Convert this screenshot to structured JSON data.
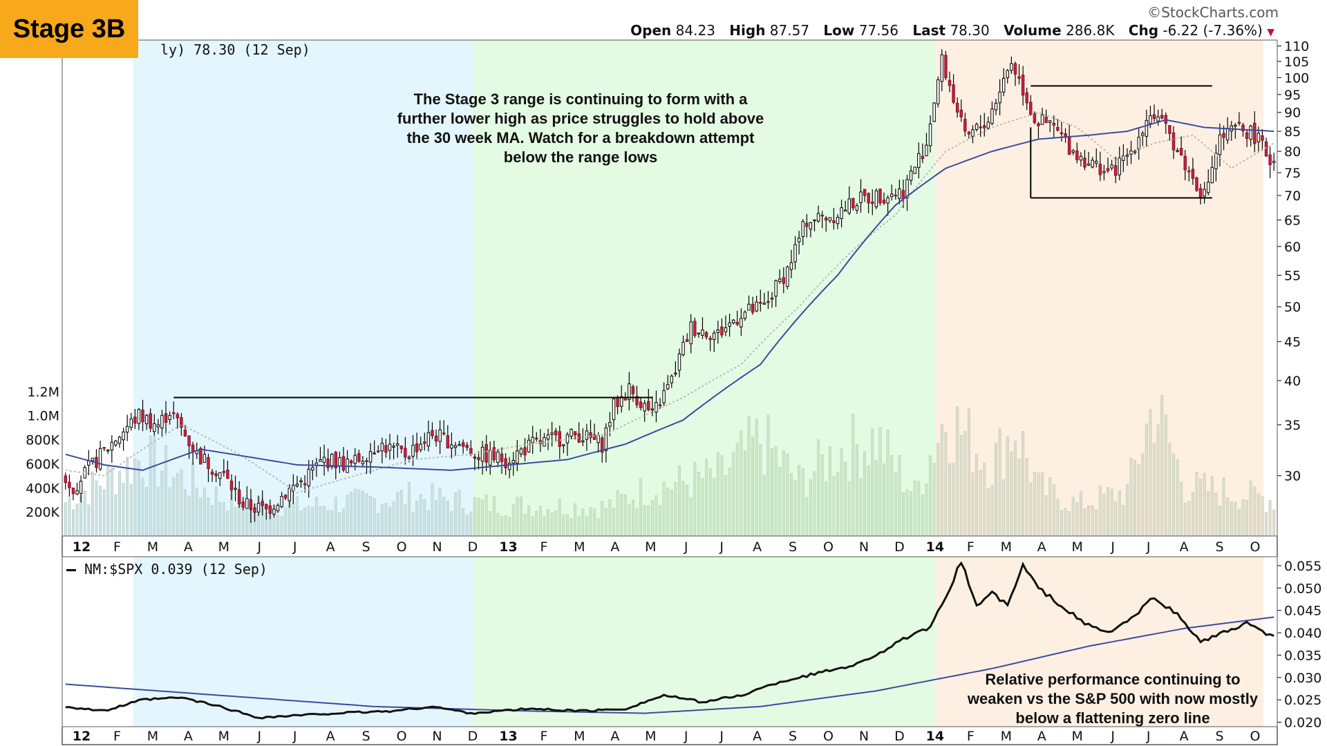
{
  "badge": "Stage 3B",
  "watermark": "©StockCharts.com",
  "quote": {
    "open_label": "Open",
    "open": "84.23",
    "high_label": "High",
    "high": "87.57",
    "low_label": "Low",
    "low": "77.56",
    "last_label": "Last",
    "last": "78.30",
    "volume_label": "Volume",
    "volume": "286.8K",
    "chg_label": "Chg",
    "chg": "-6.22 (-7.36%)"
  },
  "price_label": "ly) 78.30 (12 Sep)",
  "rs_label": "NM:$SPX 0.039 (12 Sep)",
  "annotations": {
    "stage3_lines": [
      "The Stage 3 range is continuing to form with a",
      "further lower high as price struggles to hold above",
      "the 30 week MA. Watch for a breakdown attempt",
      "below the range lows"
    ],
    "rs_lines": [
      "Relative performance continuing to",
      "weaken vs the S&P 500 with now mostly",
      "below a flattening zero line"
    ]
  },
  "colors": {
    "up": "#000000",
    "down": "#c8223f",
    "ma": "#3b4aa0",
    "ma_short": "#bbbbbb",
    "stage1_bg": "#e4f6fd",
    "stage2_bg": "#e4fbe3",
    "stage3_bg": "#fdf0e3",
    "vol_stage1": "#c6e2e6",
    "vol_stage2": "#c9e9c3",
    "vol_stage3": "#e0dcc9"
  },
  "chart_data": [
    {
      "type": "candlestick",
      "scale": "log",
      "ylim": [
        25,
        112
      ],
      "y_ticks": [
        110,
        105,
        100,
        95,
        90,
        85,
        80,
        75,
        70,
        65,
        60,
        55,
        50,
        45,
        40,
        35,
        30
      ],
      "volume_ticks": [
        "1.2M",
        "1.0M",
        "800K",
        "600K",
        "400K",
        "200K"
      ],
      "volume_tick_values": [
        1200000,
        1000000,
        800000,
        600000,
        400000,
        200000
      ],
      "volume_max": 1400000,
      "x_labels": [
        "12",
        "F",
        "M",
        "A",
        "M",
        "J",
        "J",
        "A",
        "S",
        "O",
        "N",
        "D",
        "13",
        "F",
        "M",
        "A",
        "M",
        "J",
        "J",
        "A",
        "S",
        "O",
        "N",
        "D",
        "14",
        "F",
        "M",
        "A",
        "M",
        "J",
        "J",
        "A",
        "S",
        "O"
      ],
      "week_end_label": "12 Sep",
      "stage_boundaries_week": [
        0,
        106,
        226,
        297
      ],
      "breakout_line": {
        "price": 38.0,
        "from_week": 28,
        "to_week": 152
      },
      "range_lines": {
        "top": 97.5,
        "bottom": 69.5,
        "from_week": 250,
        "to_week": 297
      },
      "anchors": [
        [
          0,
          30
        ],
        [
          3,
          29
        ],
        [
          8,
          31
        ],
        [
          15,
          34
        ],
        [
          20,
          36
        ],
        [
          25,
          35
        ],
        [
          28,
          36.5
        ],
        [
          35,
          32
        ],
        [
          42,
          30
        ],
        [
          47,
          27.5
        ],
        [
          53,
          27
        ],
        [
          58,
          28.5
        ],
        [
          62,
          29.5
        ],
        [
          68,
          31.5
        ],
        [
          75,
          31
        ],
        [
          82,
          33
        ],
        [
          89,
          32
        ],
        [
          96,
          34
        ],
        [
          103,
          33
        ],
        [
          108,
          32
        ],
        [
          115,
          31.5
        ],
        [
          122,
          33
        ],
        [
          128,
          33.5
        ],
        [
          134,
          34
        ],
        [
          140,
          33
        ],
        [
          143,
          37
        ],
        [
          147,
          39
        ],
        [
          153,
          36
        ],
        [
          158,
          40
        ],
        [
          163,
          47
        ],
        [
          170,
          46
        ],
        [
          176,
          49
        ],
        [
          182,
          50
        ],
        [
          188,
          56
        ],
        [
          193,
          65
        ],
        [
          200,
          66
        ],
        [
          206,
          69
        ],
        [
          212,
          70
        ],
        [
          218,
          71
        ],
        [
          224,
          82
        ],
        [
          228,
          105
        ],
        [
          234,
          83
        ],
        [
          240,
          88
        ],
        [
          246,
          105
        ],
        [
          252,
          88
        ],
        [
          257,
          86
        ],
        [
          262,
          80
        ],
        [
          267,
          77
        ],
        [
          272,
          75
        ],
        [
          277,
          80
        ],
        [
          282,
          90
        ],
        [
          287,
          84
        ],
        [
          292,
          75
        ],
        [
          296,
          70
        ],
        [
          300,
          83
        ],
        [
          305,
          86
        ],
        [
          309,
          84
        ],
        [
          313,
          78
        ]
      ],
      "ma30_anchors": [
        [
          0,
          32
        ],
        [
          10,
          31
        ],
        [
          20,
          30.5
        ],
        [
          35,
          32.5
        ],
        [
          60,
          31
        ],
        [
          80,
          30.8
        ],
        [
          100,
          30.5
        ],
        [
          130,
          31.5
        ],
        [
          145,
          33
        ],
        [
          160,
          35.5
        ],
        [
          180,
          42
        ],
        [
          200,
          55
        ],
        [
          215,
          68
        ],
        [
          228,
          76
        ],
        [
          240,
          80
        ],
        [
          252,
          83
        ],
        [
          265,
          84
        ],
        [
          275,
          85
        ],
        [
          285,
          88
        ],
        [
          295,
          86
        ],
        [
          313,
          85
        ]
      ],
      "ma10_anchors": [
        [
          0,
          30.5
        ],
        [
          10,
          30
        ],
        [
          20,
          32.5
        ],
        [
          30,
          35
        ],
        [
          45,
          32
        ],
        [
          60,
          28.5
        ],
        [
          75,
          30
        ],
        [
          90,
          31.5
        ],
        [
          105,
          32
        ],
        [
          120,
          33
        ],
        [
          140,
          34
        ],
        [
          160,
          38
        ],
        [
          175,
          42
        ],
        [
          190,
          50
        ],
        [
          205,
          60
        ],
        [
          215,
          66
        ],
        [
          228,
          80
        ],
        [
          240,
          86
        ],
        [
          252,
          90
        ],
        [
          262,
          86
        ],
        [
          272,
          78
        ],
        [
          282,
          82
        ],
        [
          292,
          84
        ],
        [
          302,
          76
        ],
        [
          313,
          82
        ]
      ],
      "volume_anchors": [
        [
          0,
          280000
        ],
        [
          20,
          650000
        ],
        [
          40,
          320000
        ],
        [
          60,
          240000
        ],
        [
          90,
          330000
        ],
        [
          110,
          260000
        ],
        [
          140,
          240000
        ],
        [
          150,
          380000
        ],
        [
          170,
          510000
        ],
        [
          180,
          800000
        ],
        [
          190,
          450000
        ],
        [
          200,
          700000
        ],
        [
          210,
          800000
        ],
        [
          220,
          350000
        ],
        [
          228,
          1000000
        ],
        [
          240,
          600000
        ],
        [
          246,
          900000
        ],
        [
          252,
          400000
        ],
        [
          262,
          260000
        ],
        [
          275,
          370000
        ],
        [
          282,
          1100000
        ],
        [
          290,
          410000
        ],
        [
          300,
          370000
        ],
        [
          313,
          300000
        ]
      ]
    },
    {
      "type": "line",
      "series_label": "NM:$SPX",
      "ylim": [
        0.019,
        0.057
      ],
      "y_ticks": [
        0.055,
        0.05,
        0.045,
        0.04,
        0.035,
        0.03,
        0.025,
        0.02
      ],
      "y_tick_labels": [
        "0.055",
        "0.050",
        "0.045",
        "0.040",
        "0.035",
        "0.030",
        "0.025",
        "0.020"
      ],
      "rs_anchors": [
        [
          0,
          0.0235
        ],
        [
          10,
          0.0225
        ],
        [
          20,
          0.025
        ],
        [
          30,
          0.0255
        ],
        [
          40,
          0.0235
        ],
        [
          50,
          0.021
        ],
        [
          60,
          0.0215
        ],
        [
          70,
          0.022
        ],
        [
          85,
          0.0225
        ],
        [
          95,
          0.0235
        ],
        [
          105,
          0.022
        ],
        [
          120,
          0.023
        ],
        [
          135,
          0.0225
        ],
        [
          145,
          0.023
        ],
        [
          155,
          0.026
        ],
        [
          165,
          0.0245
        ],
        [
          175,
          0.026
        ],
        [
          185,
          0.029
        ],
        [
          195,
          0.031
        ],
        [
          205,
          0.033
        ],
        [
          212,
          0.036
        ],
        [
          218,
          0.039
        ],
        [
          224,
          0.041
        ],
        [
          228,
          0.048
        ],
        [
          232,
          0.056
        ],
        [
          236,
          0.046
        ],
        [
          240,
          0.049
        ],
        [
          244,
          0.046
        ],
        [
          248,
          0.055
        ],
        [
          252,
          0.05
        ],
        [
          258,
          0.046
        ],
        [
          264,
          0.042
        ],
        [
          270,
          0.04
        ],
        [
          276,
          0.043
        ],
        [
          282,
          0.048
        ],
        [
          288,
          0.044
        ],
        [
          294,
          0.038
        ],
        [
          300,
          0.04
        ],
        [
          306,
          0.042
        ],
        [
          313,
          0.039
        ]
      ],
      "rs_ma_anchors": [
        [
          0,
          0.0285
        ],
        [
          40,
          0.026
        ],
        [
          80,
          0.0235
        ],
        [
          120,
          0.0225
        ],
        [
          150,
          0.022
        ],
        [
          180,
          0.0235
        ],
        [
          210,
          0.027
        ],
        [
          240,
          0.032
        ],
        [
          265,
          0.037
        ],
        [
          290,
          0.041
        ],
        [
          313,
          0.0435
        ]
      ],
      "x_labels": [
        "12",
        "F",
        "M",
        "A",
        "M",
        "J",
        "J",
        "A",
        "S",
        "O",
        "N",
        "D",
        "13",
        "F",
        "M",
        "A",
        "M",
        "J",
        "J",
        "A",
        "S",
        "O",
        "N",
        "D",
        "14",
        "F",
        "M",
        "A",
        "M",
        "J",
        "J",
        "A",
        "S",
        "O"
      ]
    }
  ]
}
